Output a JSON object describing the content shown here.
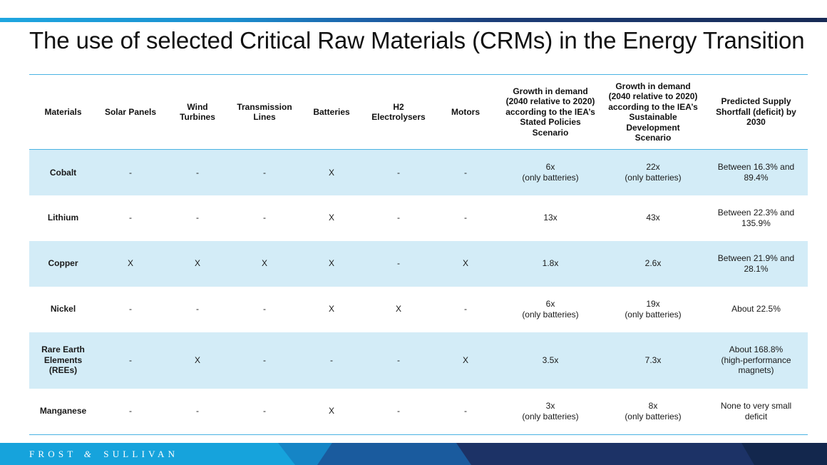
{
  "slide": {
    "title": "The use of selected Critical Raw Materials (CRMs) in the Energy Transition"
  },
  "table": {
    "headers": [
      "Materials",
      "Solar Panels",
      "Wind Turbines",
      "Transmission Lines",
      "Batteries",
      "H2 Electrolysers",
      "Motors",
      "Growth in demand (2040 relative to 2020) according to the IEA’s Stated Policies Scenario",
      "Growth in demand (2040 relative to 2020) according to the IEA’s Sustainable Development Scenario",
      "Predicted Supply Shortfall (deficit) by 2030"
    ],
    "rows": [
      {
        "material": "Cobalt",
        "solar": "-",
        "wind": "-",
        "transmission": "-",
        "batteries": "X",
        "h2": "-",
        "motors": "-",
        "steps": {
          "value": "6x",
          "note": "(only batteries)"
        },
        "sds": {
          "value": "22x",
          "note": "(only batteries)"
        },
        "shortfall": "Between 16.3% and 89.4%"
      },
      {
        "material": "Lithium",
        "solar": "-",
        "wind": "-",
        "transmission": "-",
        "batteries": "X",
        "h2": "-",
        "motors": "-",
        "steps": {
          "value": "13x"
        },
        "sds": {
          "value": "43x"
        },
        "shortfall": "Between 22.3% and 135.9%"
      },
      {
        "material": "Copper",
        "solar": "X",
        "wind": "X",
        "transmission": "X",
        "batteries": "X",
        "h2": "-",
        "motors": "X",
        "steps": {
          "value": "1.8x"
        },
        "sds": {
          "value": "2.6x"
        },
        "shortfall": "Between 21.9% and 28.1%"
      },
      {
        "material": "Nickel",
        "solar": "-",
        "wind": "-",
        "transmission": "-",
        "batteries": "X",
        "h2": "X",
        "motors": "-",
        "steps": {
          "value": "6x",
          "note": "(only batteries)"
        },
        "sds": {
          "value": "19x",
          "note": "(only batteries)"
        },
        "shortfall": "About 22.5%"
      },
      {
        "material": "Rare Earth Elements (REEs)",
        "solar": "-",
        "wind": "X",
        "transmission": "-",
        "batteries": "-",
        "h2": "-",
        "motors": "X",
        "steps": {
          "value": "3.5x"
        },
        "sds": {
          "value": "7.3x"
        },
        "shortfall": "About 168.8% (high-performance magnets)"
      },
      {
        "material": "Manganese",
        "solar": "-",
        "wind": "-",
        "transmission": "-",
        "batteries": "X",
        "h2": "-",
        "motors": "-",
        "steps": {
          "value": "3x",
          "note": "(only batteries)"
        },
        "sds": {
          "value": "8x",
          "note": "(only batteries)"
        },
        "shortfall": "None to very small deficit"
      }
    ]
  },
  "footer": {
    "logo_left": "FROST",
    "logo_amp": "&",
    "logo_right": "SULLIVAN"
  },
  "colors": {
    "accent_blue": "#4ab3e3",
    "row_shade": "#d3ecf7",
    "footer_cyan": "#16a3dc",
    "footer_navy": "#1c3266"
  }
}
